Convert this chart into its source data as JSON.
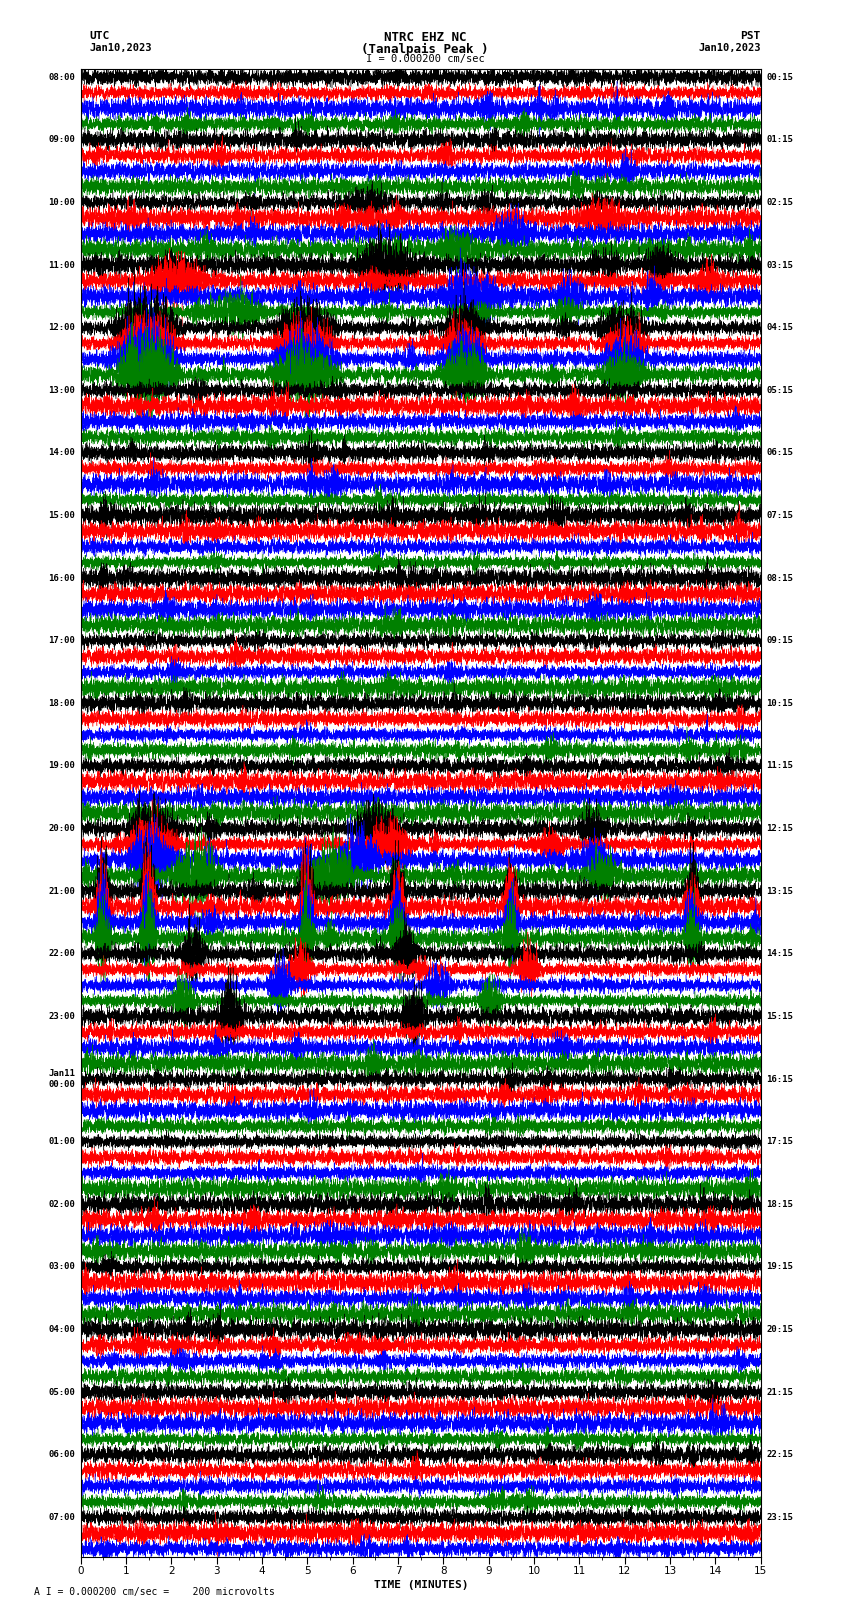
{
  "title_line1": "NTRC EHZ NC",
  "title_line2": "(Tanalpais Peak )",
  "scale_text": "I = 0.000200 cm/sec",
  "bottom_text": "A I = 0.000200 cm/sec =    200 microvolts",
  "utc_label": "UTC",
  "pst_label": "PST",
  "date_left": "Jan10,2023",
  "date_right": "Jan10,2023",
  "xlabel": "TIME (MINUTES)",
  "x_min": 0,
  "x_max": 15,
  "colors": [
    "black",
    "red",
    "blue",
    "green"
  ],
  "left_times_utc": [
    "08:00",
    "",
    "",
    "",
    "09:00",
    "",
    "",
    "",
    "10:00",
    "",
    "",
    "",
    "11:00",
    "",
    "",
    "",
    "12:00",
    "",
    "",
    "",
    "13:00",
    "",
    "",
    "",
    "14:00",
    "",
    "",
    "",
    "15:00",
    "",
    "",
    "",
    "16:00",
    "",
    "",
    "",
    "17:00",
    "",
    "",
    "",
    "18:00",
    "",
    "",
    "",
    "19:00",
    "",
    "",
    "",
    "20:00",
    "",
    "",
    "",
    "21:00",
    "",
    "",
    "",
    "22:00",
    "",
    "",
    "",
    "23:00",
    "",
    "",
    "",
    "Jan11\n00:00",
    "",
    "",
    "",
    "01:00",
    "",
    "",
    "",
    "02:00",
    "",
    "",
    "",
    "03:00",
    "",
    "",
    "",
    "04:00",
    "",
    "",
    "",
    "05:00",
    "",
    "",
    "",
    "06:00",
    "",
    "",
    "",
    "07:00",
    "",
    ""
  ],
  "right_times_pst": [
    "00:15",
    "",
    "",
    "",
    "01:15",
    "",
    "",
    "",
    "02:15",
    "",
    "",
    "",
    "03:15",
    "",
    "",
    "",
    "04:15",
    "",
    "",
    "",
    "05:15",
    "",
    "",
    "",
    "06:15",
    "",
    "",
    "",
    "07:15",
    "",
    "",
    "",
    "08:15",
    "",
    "",
    "",
    "09:15",
    "",
    "",
    "",
    "10:15",
    "",
    "",
    "",
    "11:15",
    "",
    "",
    "",
    "12:15",
    "",
    "",
    "",
    "13:15",
    "",
    "",
    "",
    "14:15",
    "",
    "",
    "",
    "15:15",
    "",
    "",
    "",
    "16:15",
    "",
    "",
    "",
    "17:15",
    "",
    "",
    "",
    "18:15",
    "",
    "",
    "",
    "19:15",
    "",
    "",
    "",
    "20:15",
    "",
    "",
    "",
    "21:15",
    "",
    "",
    "",
    "22:15",
    "",
    "",
    "",
    "23:15",
    "",
    ""
  ],
  "n_rows": 95,
  "background_color": "white",
  "line_width": 0.3,
  "noise_seed": 42
}
